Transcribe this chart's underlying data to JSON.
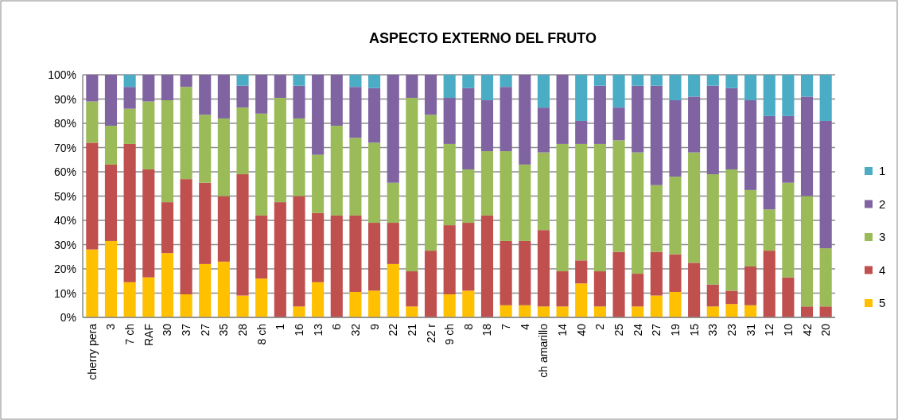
{
  "chart_data": {
    "type": "bar",
    "stacked": true,
    "title": "ASPECTO EXTERNO DEL FRUTO",
    "categories": [
      "cherry pera",
      "3",
      "7 ch",
      "RAF",
      "30",
      "37",
      "27",
      "35",
      "28",
      "8 ch",
      "1",
      "16",
      "13",
      "6",
      "32",
      "9",
      "22",
      "21",
      "22 r",
      "9 ch",
      "8",
      "18",
      "7",
      "4",
      "ch amarillo",
      "14",
      "40",
      "2",
      "25",
      "24",
      "27",
      "19",
      "15",
      "33",
      "23",
      "31",
      "12",
      "10",
      "42",
      "20"
    ],
    "series": [
      {
        "name": "5",
        "color": "#ffc000",
        "values": [
          28,
          31.5,
          14.5,
          16.5,
          26.5,
          9.5,
          22,
          23,
          9,
          16,
          0,
          4.5,
          14.5,
          0,
          10.5,
          11,
          22,
          4.5,
          0,
          9.5,
          11,
          0,
          5,
          5,
          4.5,
          4.5,
          14,
          4.5,
          0,
          4.5,
          9,
          10.5,
          0,
          4.5,
          5.5,
          5,
          0,
          0,
          0,
          0
        ]
      },
      {
        "name": "4",
        "color": "#c0504d",
        "values": [
          44,
          31.5,
          57,
          44.5,
          21,
          47.5,
          33.5,
          27,
          50,
          26,
          47.5,
          45.5,
          28.5,
          42,
          31.5,
          28,
          17,
          14.5,
          27.5,
          28.5,
          28,
          42,
          26.5,
          26.5,
          31.5,
          14.5,
          9.5,
          14.5,
          27,
          13.5,
          18,
          15.5,
          22.5,
          9,
          5.5,
          16,
          27.5,
          16.5,
          4.5,
          4.5
        ]
      },
      {
        "name": "3",
        "color": "#9bbb59",
        "values": [
          17,
          16,
          14.5,
          28,
          42,
          38,
          28,
          32,
          27.5,
          42,
          43,
          32,
          24,
          37,
          32,
          33,
          16.5,
          71.5,
          56,
          33.5,
          22,
          26.5,
          37,
          31.5,
          32,
          52.5,
          48,
          52.5,
          46,
          50,
          27.5,
          32,
          45.5,
          45.5,
          50,
          31.5,
          17,
          39,
          45.5,
          24
        ]
      },
      {
        "name": "2",
        "color": "#8064a2",
        "values": [
          11,
          21,
          9,
          11,
          10.5,
          5,
          16.5,
          18,
          9,
          16,
          9.5,
          13.5,
          33,
          21,
          21,
          22.5,
          44.5,
          9.5,
          16.5,
          19,
          33.5,
          21,
          26.5,
          37,
          18.5,
          28.5,
          9.5,
          24,
          13.5,
          27.5,
          41,
          31.5,
          23,
          36.5,
          33.5,
          37,
          38.5,
          27.5,
          41,
          52.5
        ]
      },
      {
        "name": "1",
        "color": "#4bacc6",
        "values": [
          0,
          0,
          5,
          0,
          0,
          0,
          0,
          0,
          4.5,
          0,
          0,
          4.5,
          0,
          0,
          5,
          5.5,
          0,
          0,
          0,
          9.5,
          5.5,
          10.5,
          5,
          0,
          13.5,
          0,
          19,
          4.5,
          13.5,
          4.5,
          4.5,
          10.5,
          9,
          4.5,
          5.5,
          10.5,
          17,
          17,
          9,
          19
        ]
      }
    ],
    "ylim": [
      0,
      100
    ],
    "yticks": [
      {
        "value": 0,
        "label": "0%"
      },
      {
        "value": 10,
        "label": "10%"
      },
      {
        "value": 20,
        "label": "20%"
      },
      {
        "value": 30,
        "label": "30%"
      },
      {
        "value": 40,
        "label": "40%"
      },
      {
        "value": 50,
        "label": "50%"
      },
      {
        "value": 60,
        "label": "60%"
      },
      {
        "value": 70,
        "label": "70%"
      },
      {
        "value": 80,
        "label": "80%"
      },
      {
        "value": 90,
        "label": "90%"
      },
      {
        "value": 100,
        "label": "100%"
      }
    ],
    "grid": "y",
    "legend": "right"
  }
}
